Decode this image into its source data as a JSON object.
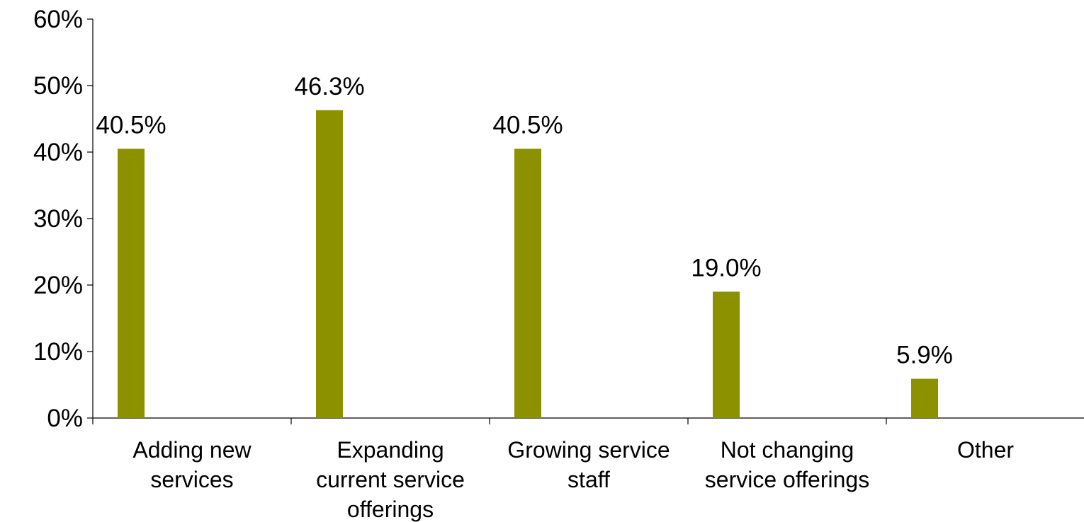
{
  "chart_data": {
    "type": "bar",
    "categories": [
      [
        "Adding new",
        "services"
      ],
      [
        "Expanding",
        "current service",
        "offerings"
      ],
      [
        "Growing service",
        "staff"
      ],
      [
        "Not changing",
        "service offerings"
      ],
      [
        "Other"
      ]
    ],
    "values": [
      40.5,
      46.3,
      40.5,
      19.0,
      5.9
    ],
    "data_labels": [
      "40.5%",
      "46.3%",
      "40.5%",
      "19.0%",
      "5.9%"
    ],
    "title": "",
    "xlabel": "",
    "ylabel": "",
    "ylim": [
      0,
      60
    ],
    "yticks": [
      0,
      10,
      20,
      30,
      40,
      50,
      60
    ],
    "ytick_labels": [
      "0%",
      "10%",
      "20%",
      "30%",
      "40%",
      "50%",
      "60%"
    ],
    "grid": false,
    "legend": "none",
    "bar_color": "#8c9100"
  }
}
